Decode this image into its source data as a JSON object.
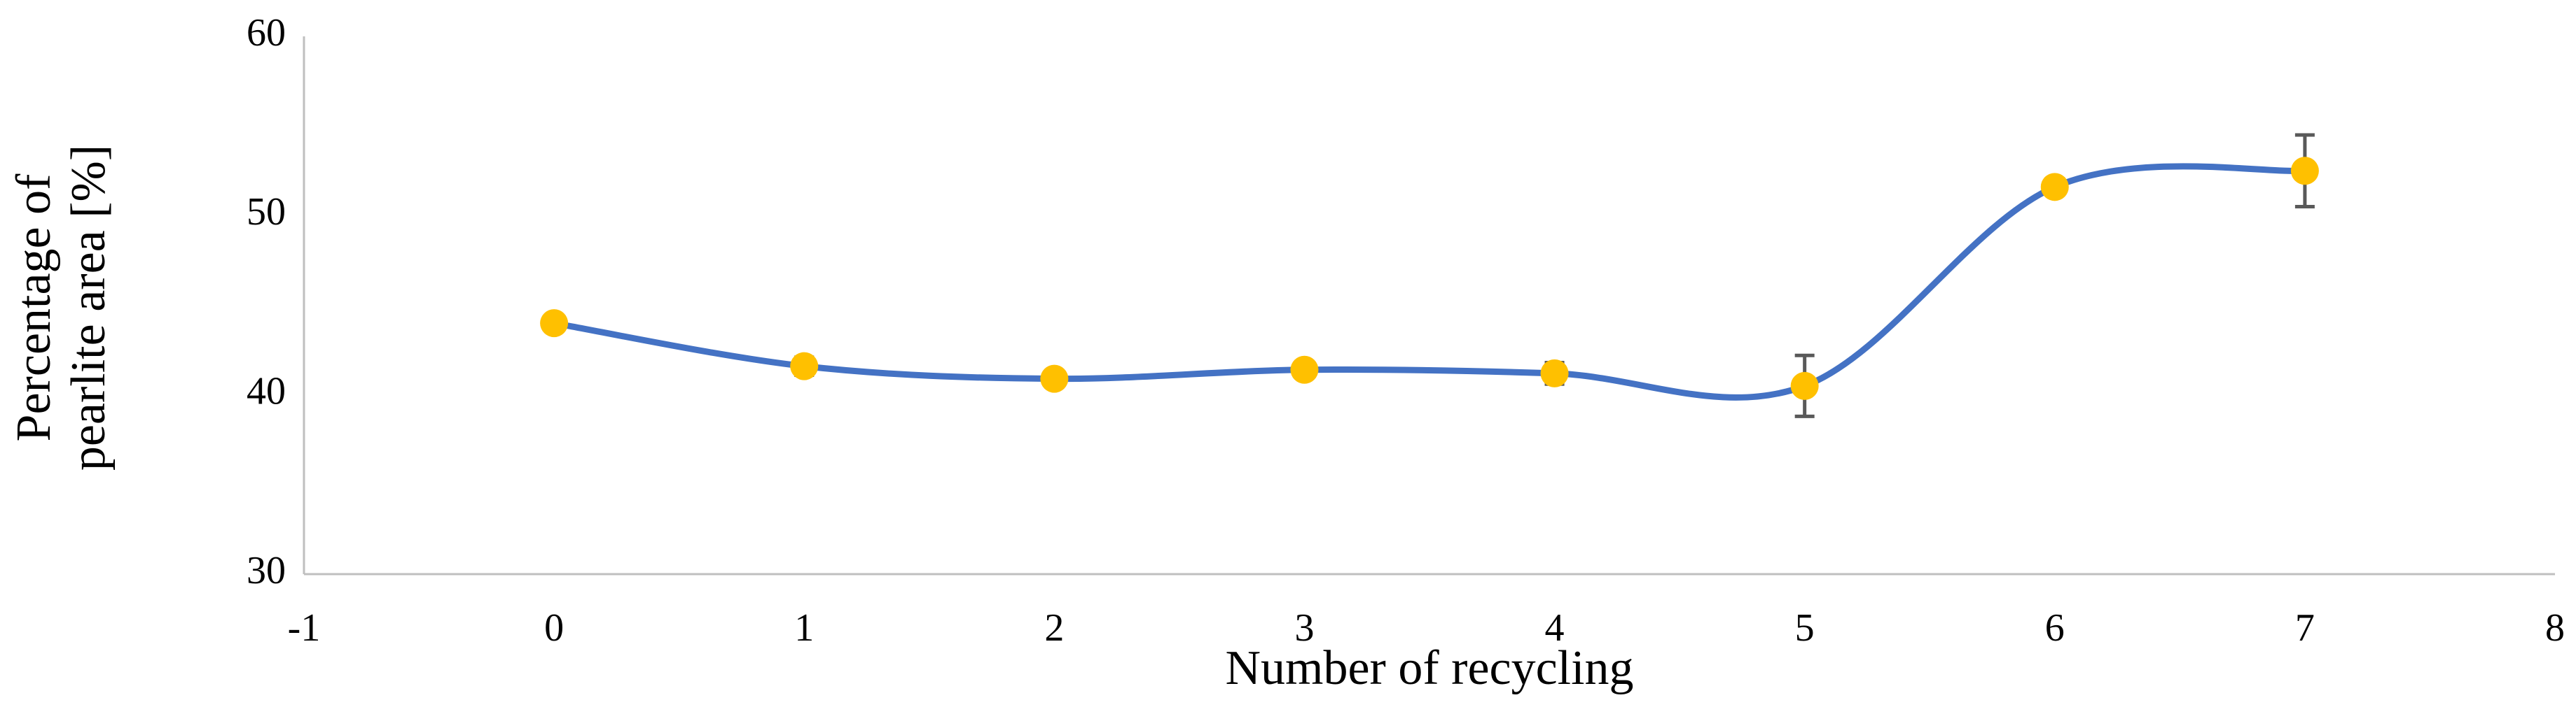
{
  "chart_data": {
    "type": "scatter",
    "smooth": true,
    "xlabel": "Number of recycling",
    "ylabel": "Percentage of pearlite area [%]",
    "x": [
      0,
      1,
      2,
      3,
      4,
      5,
      6,
      7
    ],
    "series": [
      {
        "color": "#ffc000",
        "line_color": "#4472c4",
        "values": [
          44,
          41.6,
          40.9,
          41.4,
          41.2,
          40.5,
          51.6,
          52.5
        ],
        "errors": [
          null,
          0.5,
          null,
          null,
          0.6,
          1.7,
          null,
          2.0
        ]
      }
    ],
    "xlim": [
      -1,
      8
    ],
    "xticks": [
      -1,
      0,
      1,
      2,
      3,
      4,
      5,
      6,
      7,
      8
    ],
    "ylim": [
      30,
      60
    ],
    "yticks": [
      30,
      40,
      50,
      60
    ],
    "grid": false
  }
}
